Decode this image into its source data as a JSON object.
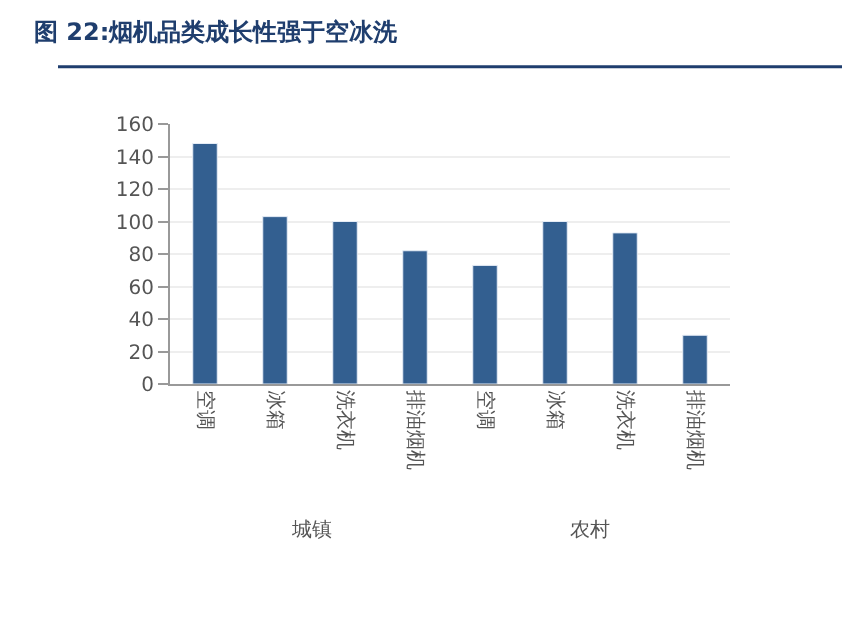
{
  "chart_data": {
    "type": "bar",
    "title": "图 22:烟机品类成长性强于空冰洗",
    "categories": [
      "空调",
      "冰箱",
      "洗衣机",
      "排油烟机",
      "空调",
      "冰箱",
      "洗衣机",
      "排油烟机"
    ],
    "values": [
      148,
      103,
      100,
      82,
      73,
      100,
      93,
      30
    ],
    "color": "#335f90",
    "ylim": [
      0,
      160
    ],
    "yticks": [
      0,
      20,
      40,
      60,
      80,
      100,
      120,
      140,
      160
    ],
    "grid": "y",
    "annotations": [
      "城镇",
      "农村"
    ]
  }
}
